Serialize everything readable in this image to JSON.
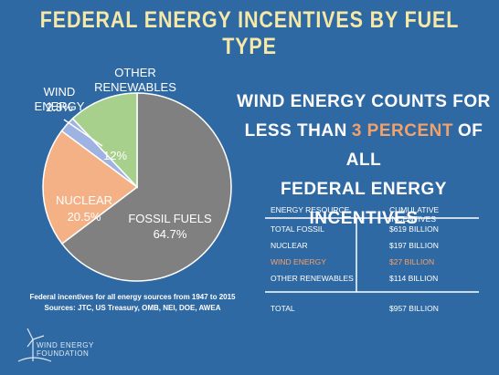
{
  "chart_data": {
    "type": "pie",
    "title": "FEDERAL ENERGY INCENTIVES BY FUEL TYPE",
    "categories": [
      "FOSSIL FUELS",
      "NUCLEAR",
      "WIND ENERGY",
      "OTHER RENEWABLES"
    ],
    "values": [
      64.7,
      20.5,
      2.8,
      12
    ],
    "value_labels": [
      "64.7%",
      "20.5%",
      "2.8%",
      "12%"
    ],
    "colors": [
      "#808080",
      "#f4b185",
      "#9fb3e3",
      "#a8d08d"
    ]
  },
  "headline": {
    "line1": "WIND ENERGY COUNTS FOR",
    "line2_before": "LESS THAN",
    "highlight": "3 PERCENT",
    "line2_after": "OF ALL",
    "line3": "FEDERAL ENERGY INCENTIVES"
  },
  "table": {
    "header": [
      "ENERGY RESOURCE",
      "CUMULATIVE INCENTIVES"
    ],
    "rows": [
      [
        "TOTAL FOSSIL",
        "$619 BILLION"
      ],
      [
        "NUCLEAR",
        "$197 BILLION"
      ],
      [
        "WIND ENERGY",
        "$27 BILLION"
      ],
      [
        "OTHER RENEWABLES",
        "$114 BILLION"
      ]
    ],
    "total": [
      "TOTAL",
      "$957 BILLION"
    ]
  },
  "footnote": [
    "Federal incentives for all energy sources from 1947 to 2015",
    "Sources: JTC, US Treasury, OMB, NEI, DOE, AWEA"
  ],
  "logo": [
    "WIND ENERGY",
    "FOUNDATION"
  ]
}
